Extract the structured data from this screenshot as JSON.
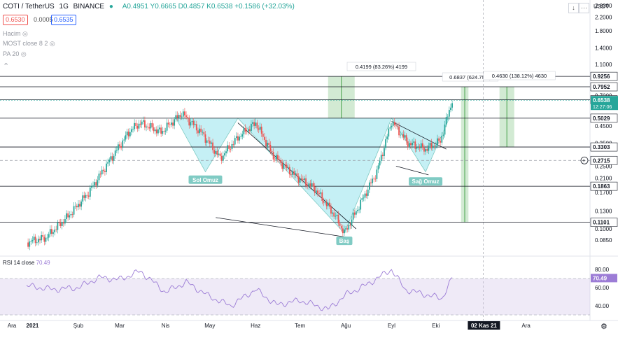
{
  "header": {
    "symbol": "COTI / TetherUS",
    "interval": "1G",
    "exchange": "BINANCE",
    "ohlc": "A0.4951 Y0.6665 D0.4857 K0.6538 +0.1586 (+32.03%)",
    "bid": "0.6530",
    "spread": "0.0005",
    "ask": "0.6535"
  },
  "indicators": [
    "Hacim",
    "MOST close 8 2",
    "PA 20"
  ],
  "colors": {
    "up": "#26a69a",
    "down": "#ef5350",
    "pattern_fill": "#b2ebf2",
    "rsi": "#9c7cd6",
    "measure": "#a5d6a7"
  },
  "chart_data": [
    {
      "type": "candlestick",
      "title": "",
      "yscale": "log",
      "ylim": [
        0.07,
        2.6
      ],
      "currency_label": "USDT",
      "y_ticks": [
        "2.6000",
        "2.2000",
        "1.8000",
        "1.4000",
        "1.1000",
        "0.9000",
        "0.7000",
        "0.5000",
        "0.4500",
        "0.3500",
        "0.2500",
        "0.2100",
        "0.1700",
        "0.1300",
        "0.1000",
        "0.0850"
      ],
      "price_levels": [
        "0.9256",
        "0.7952",
        "0.6582",
        "0.5029",
        "0.3303",
        "0.2715",
        "0.1863",
        "0.1101"
      ],
      "last_price": "0.6538",
      "countdown": "12:27:06",
      "x_labels": [
        "Ara",
        "2021",
        "Şub",
        "Mar",
        "Nis",
        "May",
        "Haz",
        "Tem",
        "Ağu",
        "Eyl",
        "Eki",
        "02 Kas 21",
        "Ara"
      ],
      "annotations": [
        "Sol Omuz",
        "Baş",
        "Sağ Omuz"
      ],
      "measures": [
        "0.4199 (83.26%) 4199",
        "0.6837 (624.79%)",
        "0.4630 (138.12%) 4630"
      ],
      "close_series": [
        {
          "x": "2020-12-28",
          "y": 0.082
        },
        {
          "x": "2021-01-10",
          "y": 0.088
        },
        {
          "x": "2021-01-25",
          "y": 0.12
        },
        {
          "x": "2021-02-08",
          "y": 0.17
        },
        {
          "x": "2021-02-22",
          "y": 0.27
        },
        {
          "x": "2021-03-08",
          "y": 0.42
        },
        {
          "x": "2021-03-15",
          "y": 0.47
        },
        {
          "x": "2021-03-29",
          "y": 0.41
        },
        {
          "x": "2021-04-12",
          "y": 0.54
        },
        {
          "x": "2021-04-26",
          "y": 0.4
        },
        {
          "x": "2021-05-08",
          "y": 0.28
        },
        {
          "x": "2021-05-20",
          "y": 0.38
        },
        {
          "x": "2021-06-01",
          "y": 0.47
        },
        {
          "x": "2021-06-13",
          "y": 0.29
        },
        {
          "x": "2021-06-27",
          "y": 0.22
        },
        {
          "x": "2021-07-11",
          "y": 0.18
        },
        {
          "x": "2021-07-25",
          "y": 0.12
        },
        {
          "x": "2021-07-31",
          "y": 0.094
        },
        {
          "x": "2021-08-10",
          "y": 0.14
        },
        {
          "x": "2021-08-22",
          "y": 0.23
        },
        {
          "x": "2021-09-01",
          "y": 0.48
        },
        {
          "x": "2021-09-12",
          "y": 0.35
        },
        {
          "x": "2021-09-24",
          "y": 0.32
        },
        {
          "x": "2021-10-04",
          "y": 0.36
        },
        {
          "x": "2021-10-12",
          "y": 0.6538
        }
      ],
      "rsi": {
        "label": "RSI 14 close",
        "value": "70.49",
        "ylim": [
          30,
          90
        ],
        "y_ticks": [
          "80.00",
          "60.00",
          "40.00"
        ],
        "series": [
          {
            "x": "2020-12-28",
            "y": 62
          },
          {
            "x": "2021-01-15",
            "y": 58
          },
          {
            "x": "2021-02-01",
            "y": 60
          },
          {
            "x": "2021-02-15",
            "y": 71
          },
          {
            "x": "2021-03-01",
            "y": 69
          },
          {
            "x": "2021-03-15",
            "y": 78
          },
          {
            "x": "2021-04-01",
            "y": 55
          },
          {
            "x": "2021-04-15",
            "y": 66
          },
          {
            "x": "2021-05-01",
            "y": 50
          },
          {
            "x": "2021-05-15",
            "y": 40
          },
          {
            "x": "2021-06-01",
            "y": 58
          },
          {
            "x": "2021-06-15",
            "y": 41
          },
          {
            "x": "2021-07-01",
            "y": 46
          },
          {
            "x": "2021-07-20",
            "y": 36
          },
          {
            "x": "2021-08-01",
            "y": 52
          },
          {
            "x": "2021-08-15",
            "y": 63
          },
          {
            "x": "2021-09-01",
            "y": 80
          },
          {
            "x": "2021-09-10",
            "y": 58
          },
          {
            "x": "2021-09-25",
            "y": 52
          },
          {
            "x": "2021-10-05",
            "y": 48
          },
          {
            "x": "2021-10-12",
            "y": 70.49
          }
        ]
      }
    }
  ]
}
